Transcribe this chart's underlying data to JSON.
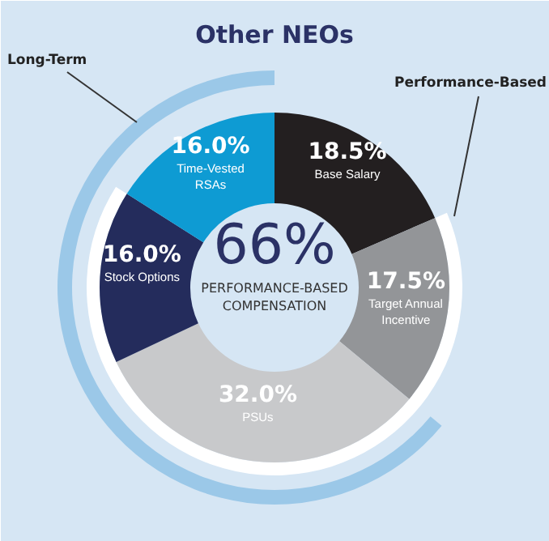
{
  "chart_data": {
    "type": "donut",
    "title": "Other NEOs",
    "categories": [
      "Base Salary",
      "Target Annual\nIncentive",
      "PSUs",
      "Stock Options",
      "Time-Vested\nRSAs"
    ],
    "values": [
      18.5,
      17.5,
      32.0,
      16.0,
      16.0
    ],
    "colors": [
      "#231f20",
      "#939598",
      "#c8c9cb",
      "#242c5c",
      "#0e9bd3"
    ],
    "value_labels": [
      "18.5%",
      "17.5%",
      "32.0%",
      "16.0%",
      "16.0%"
    ],
    "annotations": [
      "66%",
      "PERFORMANCE-BASED\nCOMPENSATION",
      "Long-Term",
      "Performance-Based"
    ]
  }
}
